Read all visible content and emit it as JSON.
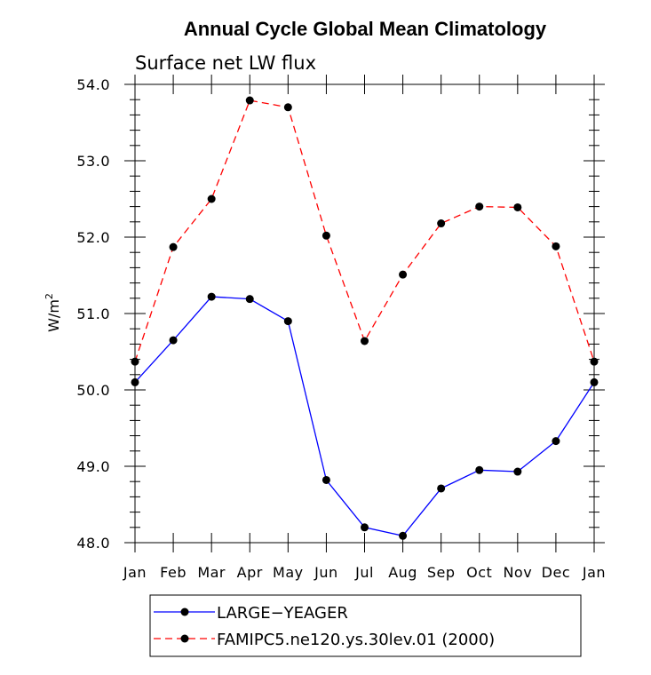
{
  "chart_data": {
    "type": "line",
    "title": "Annual Cycle Global Mean Climatology",
    "subtitle": "Surface net LW flux",
    "xlabel": "",
    "ylabel": "W/m",
    "ylabel_superscript": "2",
    "categories": [
      "Jan",
      "Feb",
      "Mar",
      "Apr",
      "May",
      "Jun",
      "Jul",
      "Aug",
      "Sep",
      "Oct",
      "Nov",
      "Dec",
      "Jan"
    ],
    "ylim": [
      48.0,
      54.0
    ],
    "yticks": [
      "48.0",
      "49.0",
      "50.0",
      "51.0",
      "52.0",
      "53.0",
      "54.0"
    ],
    "grid": false,
    "legend_position": "bottom",
    "series": [
      {
        "name": "LARGE−YEAGER",
        "color": "#0000ff",
        "dash": "solid",
        "marker": "circle",
        "values": [
          50.1,
          50.65,
          51.22,
          51.19,
          50.9,
          48.82,
          48.2,
          48.09,
          48.71,
          48.95,
          48.93,
          49.33,
          50.1
        ]
      },
      {
        "name": "FAMIPC5.ne120.ys.30lev.01 (2000)",
        "color": "#ff0000",
        "dash": "dashed",
        "marker": "circle",
        "values": [
          50.37,
          51.87,
          52.5,
          53.79,
          53.7,
          52.02,
          50.64,
          51.51,
          52.18,
          52.4,
          52.39,
          51.88,
          50.37
        ]
      }
    ]
  }
}
